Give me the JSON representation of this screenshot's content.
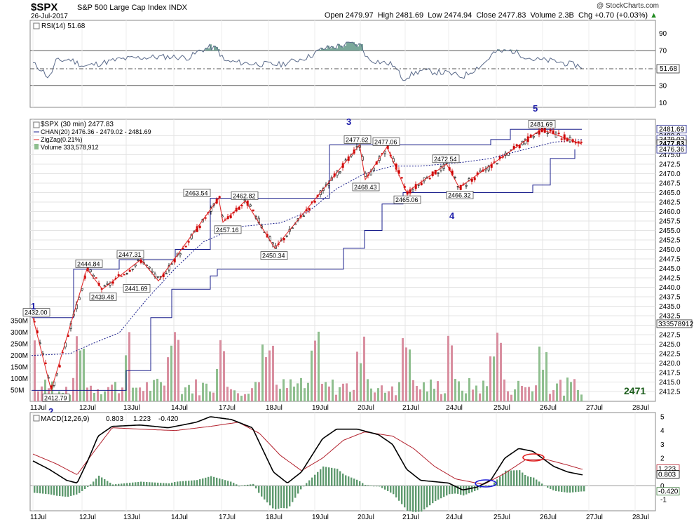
{
  "header": {
    "symbol": "$SPX",
    "name": "S&P 500 Large Cap Index",
    "exchange": "INDX",
    "date": "26-Jul-2017",
    "credit": "@ StockCharts.com",
    "open": "Open 2479.97",
    "high": "High 2481.69",
    "low": "Low 2474.94",
    "close": "Close 2477.83",
    "volume": "Volume 2.3B",
    "change": "Chg +0.70 (+0.03%)",
    "change_arrow": "up-arrow-icon"
  },
  "rsi": {
    "legend": "RSI(14) 51.68",
    "value": 51.68,
    "value_label": "51.68",
    "ticks": [
      "90",
      "70",
      "50",
      "30",
      "10"
    ]
  },
  "price": {
    "legend_main": "$SPX (30 min) 2477.83",
    "legend_chan": "CHAN(20) 2476.36 - 2479.02 - 2481.69",
    "legend_zigzag": "ZigZag(0.21%)",
    "legend_volume": "Volume 333,578,912",
    "ticks": [
      "2480.0",
      "2477.5",
      "2475.0",
      "2472.5",
      "2470.0",
      "2467.5",
      "2465.0",
      "2462.5",
      "2460.0",
      "2457.5",
      "2455.0",
      "2452.5",
      "2450.0",
      "2447.5",
      "2445.0",
      "2442.5",
      "2440.0",
      "2437.5",
      "2435.0",
      "2432.5",
      "2430.0",
      "2427.5",
      "2425.0",
      "2422.5",
      "2420.0",
      "2417.5",
      "2415.0",
      "2412.5"
    ],
    "right_labels": {
      "high": "2481.69",
      "mid": "2479.02",
      "close": "2477.83",
      "low": "2476.36",
      "volume": "333578912"
    },
    "volume_ticks": [
      "350M",
      "300M",
      "250M",
      "200M",
      "150M",
      "100M",
      "50M"
    ],
    "watermark": "2471",
    "waves": [
      "1",
      "2",
      "3",
      "4",
      "5"
    ],
    "annotations": [
      "2432.00",
      "2412.79",
      "2444.84",
      "2439.48",
      "2447.31",
      "2441.69",
      "2463.54",
      "2457.16",
      "2462.82",
      "2450.34",
      "2477.62",
      "2468.43",
      "2477.06",
      "2465.06",
      "2472.54",
      "2466.32",
      "2481.69"
    ]
  },
  "macd": {
    "legend_a": "MACD(12,26,9)",
    "legend_b": "0.803",
    "legend_c": "1.223",
    "legend_d": "-0.420",
    "ticks": [
      "5",
      "4",
      "3",
      "2",
      "1",
      "0",
      "-1"
    ],
    "right_labels": {
      "signal": "1.223",
      "macd": "0.803",
      "hist": "-0.420"
    }
  },
  "dates": [
    "11Jul",
    "12Jul",
    "13Jul",
    "14Jul",
    "17Jul",
    "18Jul",
    "19Jul",
    "20Jul",
    "21Jul",
    "24Jul",
    "25Jul",
    "26Jul",
    "27Jul",
    "28Jul"
  ],
  "colors": {
    "channel": "#1a1f8c",
    "zigzag": "#e02020",
    "up": "#000000",
    "down": "#cc0000",
    "volume_up": "#8fbf8f",
    "volume_down": "#d98fa0",
    "rsi_fill": "#7aa89a",
    "wave": "#1a1aa8"
  },
  "chart_data": {
    "type": "line",
    "title": "$SPX S&P 500 Large Cap Index",
    "x_periods": [
      "11Jul",
      "12Jul",
      "13Jul",
      "14Jul",
      "17Jul",
      "18Jul",
      "19Jul",
      "20Jul",
      "21Jul",
      "24Jul",
      "25Jul",
      "26Jul"
    ],
    "zigzag": [
      {
        "label": "2432.00",
        "y": 2432.0
      },
      {
        "label": "2412.79",
        "y": 2412.79
      },
      {
        "label": "2444.84",
        "y": 2444.84
      },
      {
        "label": "2439.48",
        "y": 2439.48
      },
      {
        "label": "2447.31",
        "y": 2447.31
      },
      {
        "label": "2441.69",
        "y": 2441.69
      },
      {
        "label": "2463.54",
        "y": 2463.54
      },
      {
        "label": "2457.16",
        "y": 2457.16
      },
      {
        "label": "2462.82",
        "y": 2462.82
      },
      {
        "label": "2450.34",
        "y": 2450.34
      },
      {
        "label": "2477.62",
        "y": 2477.62
      },
      {
        "label": "2468.43",
        "y": 2468.43
      },
      {
        "label": "2477.06",
        "y": 2477.06
      },
      {
        "label": "2465.06",
        "y": 2465.06
      },
      {
        "label": "2472.54",
        "y": 2472.54
      },
      {
        "label": "2466.32",
        "y": 2466.32
      },
      {
        "label": "2481.69",
        "y": 2481.69
      },
      {
        "label": "2477.83",
        "y": 2477.83
      }
    ],
    "price_ylim": [
      2412.5,
      2482.5
    ],
    "rsi_ylim": [
      0,
      100
    ],
    "macd_ylim": [
      -1.5,
      5.2
    ]
  }
}
